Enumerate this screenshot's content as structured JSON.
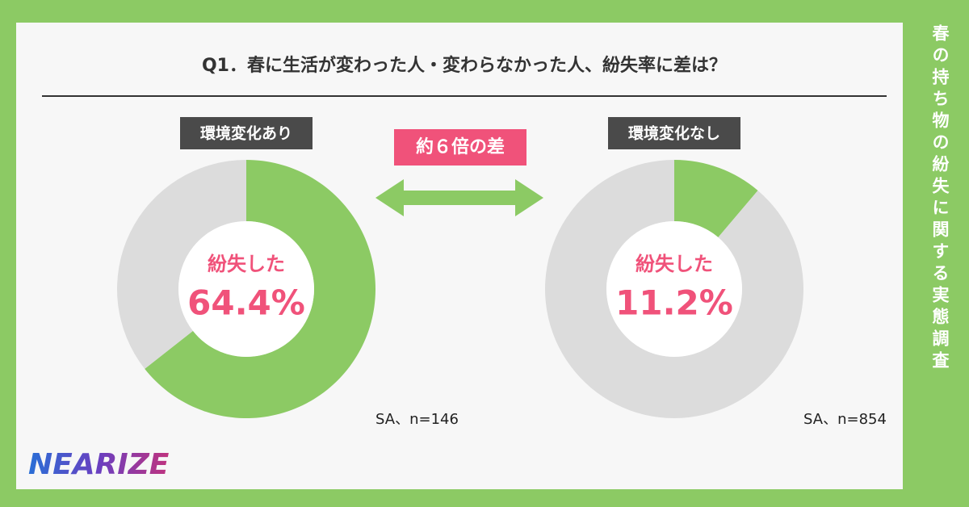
{
  "header": {
    "title": "Q1．春に生活が変わった人・変わらなかった人、紛失率に差は？"
  },
  "side_title": "春の持ち物の紛失に関する実態調査",
  "badge": "約６倍の差",
  "logo": "NEARIZE",
  "chart_data": [
    {
      "type": "pie",
      "title": "環境変化あり",
      "categories": [
        "紛失した",
        null
      ],
      "values": [
        64.4,
        35.6
      ],
      "value_labels": [
        "64.4%",
        null
      ],
      "colors": [
        "#8cca64",
        "#dcdcdc"
      ],
      "note": "SA、n=146"
    },
    {
      "type": "pie",
      "title": "環境変化なし",
      "categories": [
        "紛失した",
        null
      ],
      "values": [
        11.2,
        88.8
      ],
      "value_labels": [
        "11.2%",
        null
      ],
      "colors": [
        "#8cca64",
        "#dcdcdc"
      ],
      "note": "SA、n=854"
    }
  ]
}
